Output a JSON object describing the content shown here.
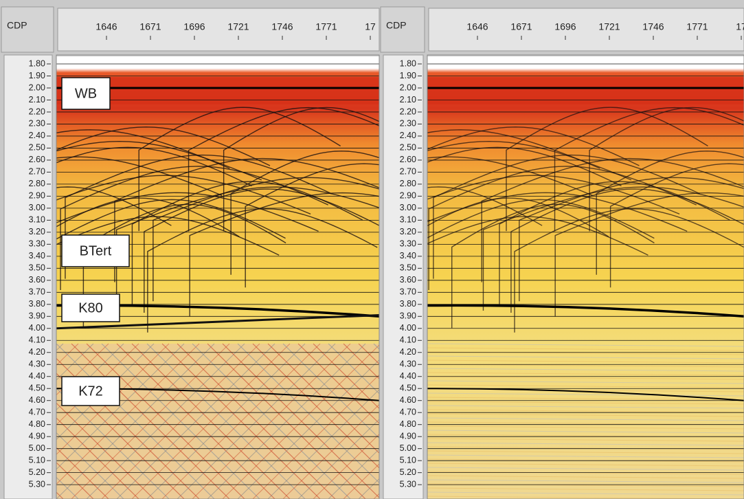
{
  "panels": [
    {
      "header": "CDP",
      "cdp_ticks": [
        "1646",
        "1671",
        "1696",
        "1721",
        "1746",
        "1771",
        "17"
      ],
      "time_ticks": [
        "1.80",
        "1.90",
        "2.00",
        "2.10",
        "2.20",
        "2.30",
        "2.40",
        "2.50",
        "2.60",
        "2.70",
        "2.80",
        "2.90",
        "3.00",
        "3.10",
        "3.20",
        "3.30",
        "3.40",
        "3.50",
        "3.60",
        "3.70",
        "3.80",
        "3.90",
        "4.00",
        "4.10",
        "4.20",
        "4.30",
        "4.40",
        "4.50",
        "4.60",
        "4.70",
        "4.80",
        "4.90",
        "5.00",
        "5.10",
        "5.20",
        "5.30"
      ],
      "horizons": [
        "WB",
        "BTert",
        "K80",
        "K72"
      ]
    },
    {
      "header": "CDP",
      "cdp_ticks": [
        "1646",
        "1671",
        "1696",
        "1721",
        "1746",
        "1771",
        "17"
      ],
      "time_ticks": [
        "1.80",
        "1.90",
        "2.00",
        "2.10",
        "2.20",
        "2.30",
        "2.40",
        "2.50",
        "2.60",
        "2.70",
        "2.80",
        "2.90",
        "3.00",
        "3.10",
        "3.20",
        "3.30",
        "3.40",
        "3.50",
        "3.60",
        "3.70",
        "3.80",
        "3.90",
        "4.00",
        "4.10",
        "4.20",
        "4.30",
        "4.40",
        "4.50",
        "4.60",
        "4.70",
        "4.80",
        "4.90",
        "5.00",
        "5.10",
        "5.20",
        "5.30"
      ]
    }
  ]
}
